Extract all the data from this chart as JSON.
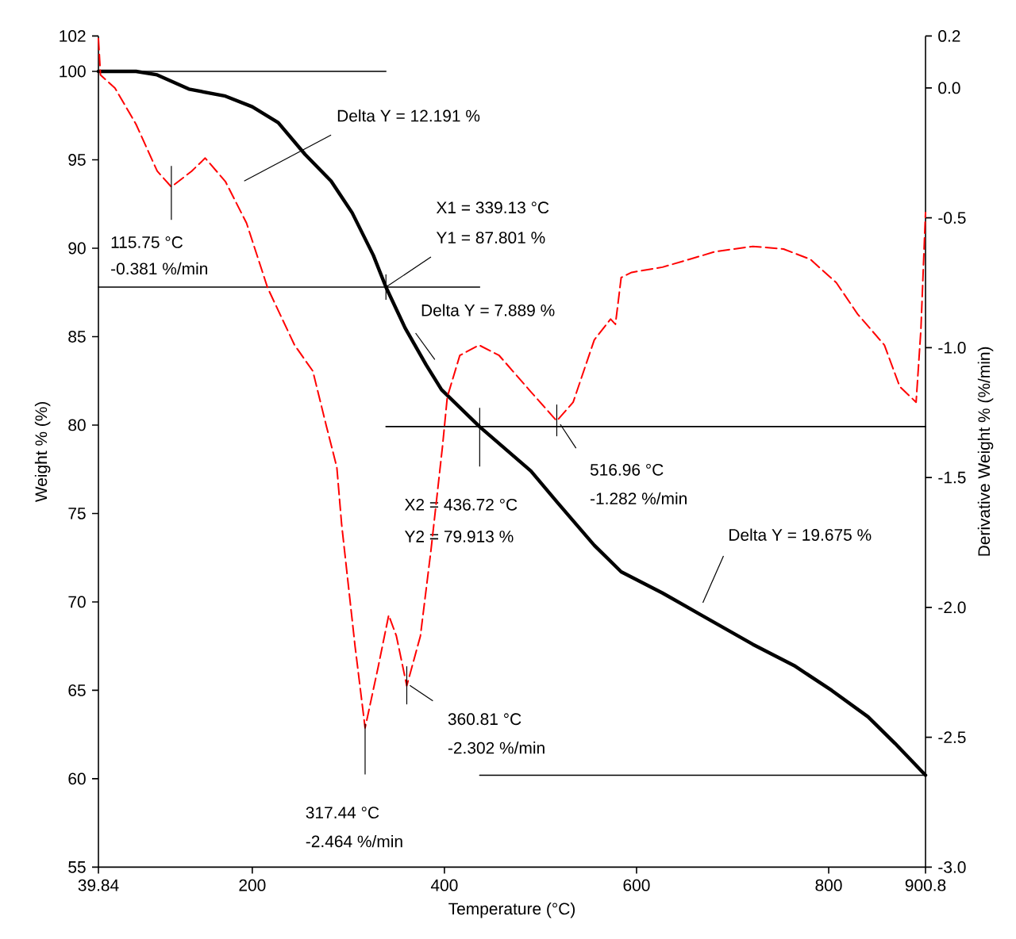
{
  "chart_data": {
    "type": "line",
    "xlabel": "Temperature (°C)",
    "ylabel": "Weight % (%)",
    "y2label": "Derivative Weight % (%/min)",
    "xlim": [
      39.84,
      900.8
    ],
    "xticks": [
      39.84,
      200,
      400,
      600,
      800,
      900.8
    ],
    "ylim": [
      55,
      102
    ],
    "yticks": [
      55,
      60,
      65,
      70,
      75,
      80,
      85,
      90,
      95,
      100,
      102
    ],
    "y2lim": [
      -3.0,
      0.2
    ],
    "y2ticks": [
      {
        "value": -3.0,
        "label": "-3.0"
      },
      -2.5,
      {
        "value": -2.0,
        "label": "-2.0"
      },
      -1.5,
      {
        "value": -1.0,
        "label": "-1.0"
      },
      -0.5,
      {
        "value": 0.0,
        "label": "0.0"
      },
      0.2
    ],
    "line_style": "solid",
    "series": [
      {
        "color": "#000000",
        "x": [
          39.84,
          79,
          101,
          134,
          172,
          200,
          227,
          255,
          282,
          304,
          326,
          339.13,
          359,
          381,
          397,
          436.72,
          490,
          518,
          556,
          584,
          627,
          666,
          721,
          764,
          803,
          841,
          869,
          900.8
        ],
        "values": [
          100,
          100,
          99.8,
          99.0,
          98.6,
          98.0,
          97.1,
          95.3,
          93.8,
          92.0,
          89.6,
          87.8,
          85.5,
          83.4,
          82.0,
          79.9,
          77.4,
          75.6,
          73.2,
          71.7,
          70.5,
          69.3,
          67.6,
          66.4,
          65.0,
          63.5,
          62.0,
          60.2
        ]
      },
      {
        "color": "#ff0000",
        "axis": "y2",
        "line_style": "dashed",
        "x": [
          39.84,
          42,
          57,
          79,
          101,
          115.75,
          137,
          151,
          172,
          194,
          216,
          244,
          263,
          277,
          288,
          293,
          307,
          317.44,
          331,
          342,
          350,
          360.81,
          375,
          386,
          398,
          403,
          416,
          436,
          457,
          490,
          516.96,
          534,
          556,
          573,
          578,
          584,
          595,
          627,
          655,
          682,
          721,
          753,
          781,
          808,
          830,
          858,
          874,
          891,
          896,
          900.8
        ],
        "values": [
          0.19,
          0.05,
          0.0,
          -0.14,
          -0.32,
          -0.381,
          -0.32,
          -0.27,
          -0.36,
          -0.52,
          -0.77,
          -0.99,
          -1.09,
          -1.3,
          -1.46,
          -1.68,
          -2.15,
          -2.464,
          -2.23,
          -2.03,
          -2.11,
          -2.302,
          -2.11,
          -1.78,
          -1.38,
          -1.19,
          -1.03,
          -0.99,
          -1.03,
          -1.17,
          -1.282,
          -1.21,
          -0.97,
          -0.89,
          -0.91,
          -0.73,
          -0.71,
          -0.69,
          -0.66,
          -0.63,
          -0.61,
          -0.62,
          -0.66,
          -0.75,
          -0.87,
          -0.99,
          -1.15,
          -1.21,
          -0.93,
          -0.48
        ]
      },
      {
        "color": "#000000",
        "x": [
          39.84,
          339.13
        ],
        "values": [
          100,
          100
        ]
      },
      {
        "color": "#000000",
        "x": [
          39.84,
          436.72
        ],
        "values": [
          87.801,
          87.801
        ]
      },
      {
        "color": "#000000",
        "x": [
          339.13,
          900.8
        ],
        "values": [
          79.913,
          79.913
        ]
      },
      {
        "color": "#000000",
        "x": [
          436.72,
          900.8
        ],
        "values": [
          60.2,
          60.2
        ]
      }
    ],
    "annotations": [
      "Delta Y = 12.191 %",
      "X1 = 339.13 °C",
      {
        "text": "Y1 = 87.801 %",
        "x": 339.13,
        "y": 87.801
      },
      "Delta Y = 7.889 %",
      "X2 = 436.72 °C",
      "Y2 = 79.913 %",
      "516.96 °C",
      "-1.282 %/min",
      "115.75 °C",
      "-0.381 %/min",
      "360.81 °C",
      "-2.302 %/min",
      "317.44 °C",
      "-2.464 %/min",
      "Delta Y = 19.675 %"
    ]
  }
}
